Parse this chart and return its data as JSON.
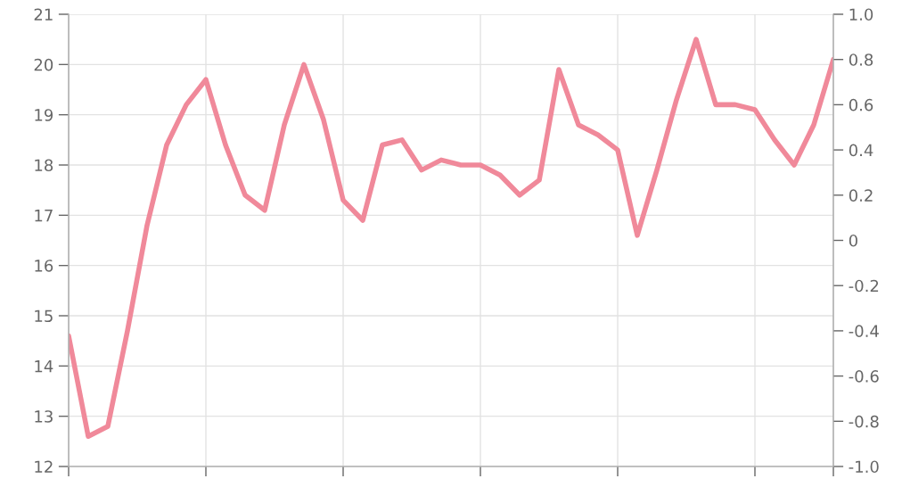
{
  "chart_data": {
    "type": "line",
    "categories": [
      null,
      null,
      null,
      null,
      null,
      null,
      null,
      null,
      null,
      null,
      null,
      null,
      null,
      null,
      null,
      null,
      null,
      null,
      null,
      null,
      null,
      null,
      null,
      null,
      null,
      null,
      null,
      null,
      null,
      null,
      null,
      null,
      null,
      null,
      null,
      null,
      null,
      null,
      null,
      null
    ],
    "series": [
      {
        "color": "#f0899a",
        "values": [
          14.6,
          12.6,
          12.8,
          14.7,
          16.8,
          18.4,
          19.2,
          19.7,
          18.4,
          17.4,
          17.1,
          18.8,
          20.0,
          18.9,
          17.3,
          16.9,
          18.4,
          18.5,
          17.9,
          18.1,
          18.0,
          18.0,
          17.8,
          17.4,
          17.7,
          19.9,
          18.8,
          18.6,
          18.3,
          16.6,
          17.9,
          19.3,
          20.5,
          19.2,
          19.2,
          19.1,
          18.5,
          18.0,
          18.8,
          20.1
        ]
      }
    ],
    "ylim": [
      12,
      21
    ],
    "yticks": [
      12,
      13,
      14,
      15,
      16,
      17,
      18,
      19,
      20,
      21
    ],
    "y2lim": [
      -1,
      1
    ],
    "y2ticks": [
      {
        "value": -1,
        "label": "-1.0"
      },
      -0.8,
      -0.6,
      -0.4,
      -0.2,
      0,
      0.2,
      0.4,
      0.6,
      0.8,
      {
        "value": 1,
        "label": "1.0"
      }
    ],
    "grid": true,
    "marker": "none",
    "line_style": "solid",
    "legend": false
  }
}
